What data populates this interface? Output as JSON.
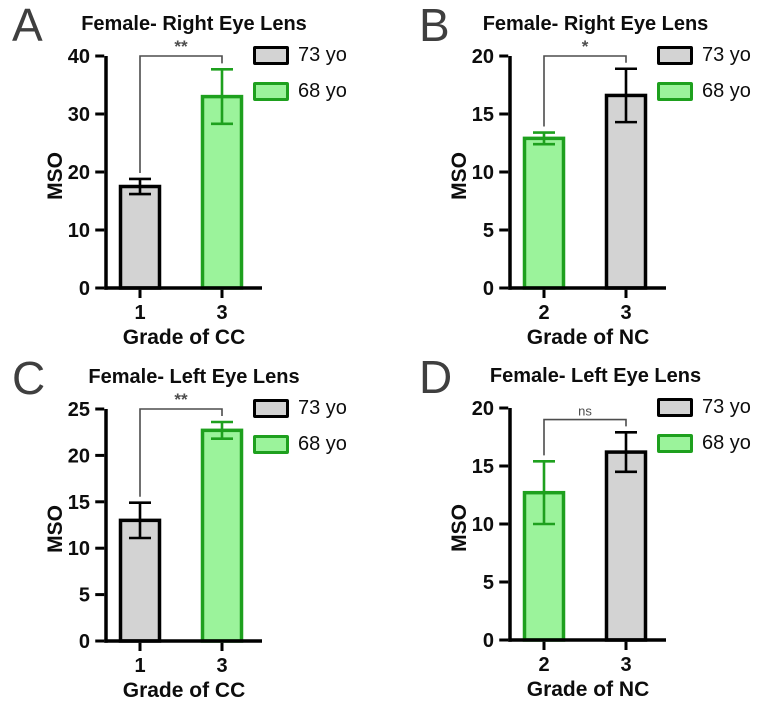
{
  "colors": {
    "gray_fill": "#D3D3D3",
    "gray_border": "#000000",
    "green_fill": "#9BF39B",
    "green_border": "#1EA01E",
    "bracket": "#4D4D4D",
    "panel_letter": "#3F3F3F",
    "axis": "#000000"
  },
  "legend": {
    "position": "top-right",
    "items": [
      {
        "label": "73 yo",
        "color": "gray"
      },
      {
        "label": "68 yo",
        "color": "green"
      }
    ]
  },
  "chart_data": [
    {
      "type": "bar",
      "letter": "A",
      "title": "Female- Right Eye Lens",
      "xlabel": "Grade of CC",
      "ylabel": "MSO",
      "ylim": [
        0,
        40
      ],
      "ytick_step": 10,
      "bars": [
        {
          "category": "1",
          "group": "73 yo",
          "color": "gray",
          "value": 17.5,
          "error": 1.3
        },
        {
          "category": "3",
          "group": "68 yo",
          "color": "green",
          "value": 33.0,
          "error": 4.7
        }
      ],
      "significance": {
        "label": "**",
        "bracket_y": 40
      }
    },
    {
      "type": "bar",
      "letter": "B",
      "title": "Female- Right Eye Lens",
      "xlabel": "Grade of NC",
      "ylabel": "MSO",
      "ylim": [
        0,
        20
      ],
      "ytick_step": 5,
      "bars": [
        {
          "category": "2",
          "group": "68 yo",
          "color": "green",
          "value": 12.9,
          "error": 0.5
        },
        {
          "category": "3",
          "group": "73 yo",
          "color": "gray",
          "value": 16.6,
          "error": 2.3
        }
      ],
      "significance": {
        "label": "*",
        "bracket_y": 20
      }
    },
    {
      "type": "bar",
      "letter": "C",
      "title": "Female- Left Eye Lens",
      "xlabel": "Grade of CC",
      "ylabel": "MSO",
      "ylim": [
        0,
        25
      ],
      "ytick_step": 5,
      "bars": [
        {
          "category": "1",
          "group": "73 yo",
          "color": "gray",
          "value": 13.0,
          "error": 1.9
        },
        {
          "category": "3",
          "group": "68 yo",
          "color": "green",
          "value": 22.7,
          "error": 0.9
        }
      ],
      "significance": {
        "label": "**",
        "bracket_y": 25
      }
    },
    {
      "type": "bar",
      "letter": "D",
      "title": "Female- Left Eye Lens",
      "xlabel": "Grade of NC",
      "ylabel": "MSO",
      "ylim": [
        0,
        20
      ],
      "ytick_step": 5,
      "bars": [
        {
          "category": "2",
          "group": "68 yo",
          "color": "green",
          "value": 12.7,
          "error": 2.7
        },
        {
          "category": "3",
          "group": "73 yo",
          "color": "gray",
          "value": 16.2,
          "error": 1.7
        }
      ],
      "significance": {
        "label": "ns",
        "bracket_y": 19
      }
    }
  ]
}
